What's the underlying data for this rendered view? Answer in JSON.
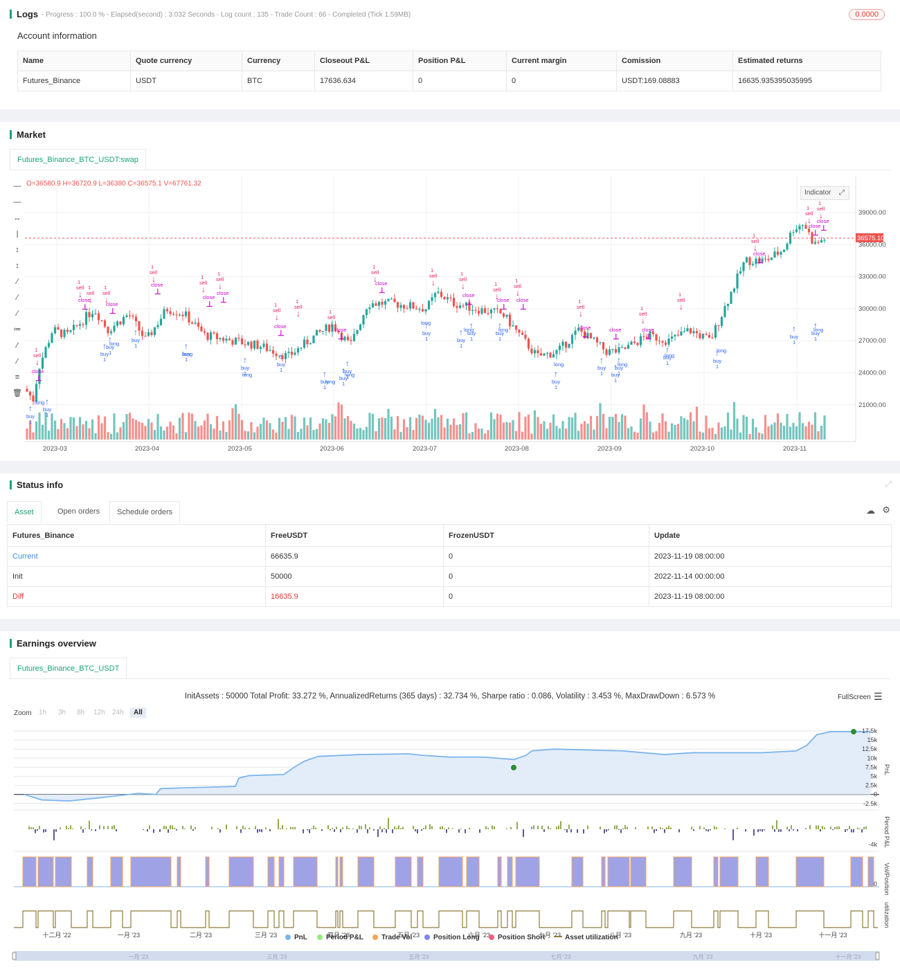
{
  "logs": {
    "title": "Logs",
    "meta": "- Progress : 100.0 % - Elapsed(second) : 3.032 Seconds - Log count : 135 - Trade Count : 66 - Completed (Tick 1.59MB)",
    "badge": "0.0000",
    "account_title": "Account information",
    "headers": [
      "Name",
      "Quote currency",
      "Currency",
      "Closeout P&L",
      "Position P&L",
      "Current margin",
      "Comission",
      "Estimated returns"
    ],
    "row": [
      "Futures_Binance",
      "USDT",
      "BTC",
      "17636.634",
      "0",
      "0",
      "USDT:169.08883",
      "16635.935395035995"
    ]
  },
  "market": {
    "title": "Market",
    "tab": "Futures_Binance_BTC_USDT:swap",
    "ohlc": "O=36580.9 H=36720.9 L=36380 C=36575.1 V=67761.32",
    "indicator_btn": "Indicator",
    "last_price": "36575.10",
    "y_ticks": [
      "39000.00",
      "36000.00",
      "33000.00",
      "30000.00",
      "27000.00",
      "24000.00",
      "21000.00"
    ],
    "x_ticks": [
      "2023-03",
      "2023-04",
      "2023-05",
      "2023-06",
      "2023-07",
      "2023-08",
      "2023-09",
      "2023-10",
      "2023-11"
    ],
    "colors": {
      "up": "#26a69a",
      "down": "#ef5350",
      "buy": "#2962ff",
      "sell": "#e91e63",
      "close": "#cc00cc"
    },
    "signal_labels": {
      "buy": "buy",
      "long": "long",
      "sell": "sell",
      "close": "close",
      "qty": "1"
    }
  },
  "status": {
    "title": "Status info",
    "tabs": [
      "Asset",
      "Open orders",
      "Schedule orders"
    ],
    "headers": [
      "Futures_Binance",
      "FreeUSDT",
      "FrozenUSDT",
      "Update"
    ],
    "rows": [
      [
        "Current",
        "66635.9",
        "0",
        "2023-11-19 08:00:00"
      ],
      [
        "Init",
        "50000",
        "0",
        "2022-11-14 00:00:00"
      ],
      [
        "Diff",
        "16635.9",
        "0",
        "2023-11-19 08:00:00"
      ]
    ]
  },
  "earnings": {
    "title": "Earnings overview",
    "tab": "Futures_Binance_BTC_USDT",
    "summary": "InitAssets : 50000 Total Profit: 33.272 %, AnnualizedReturns (365 days) : 32.734 %, Sharpe ratio : 0.086, Volatility : 3.453 %, MaxDrawDown : 6.573 %",
    "fullscreen": "FullScreen",
    "zoom_label": "Zoom",
    "zoom_buttons": [
      "1h",
      "3h",
      "8h",
      "12h",
      "24h",
      "All"
    ],
    "pnl_ticks": [
      "17.5k",
      "15k",
      "12.5k",
      "10k",
      "7.5k",
      "5k",
      "2.5k",
      "0",
      "-2.5k"
    ],
    "period_ticks": [
      "-4k"
    ],
    "vol_ticks": [
      "0"
    ],
    "axis_titles": [
      "PnL",
      "Period P&L",
      "Vol/Position",
      "utilization"
    ],
    "x_ticks": [
      "十二月 '22",
      "一月 '23",
      "二月 '23",
      "三月 '23",
      "四月 '23",
      "五月 '23",
      "六月 '23",
      "七月 '23",
      "八月 '23",
      "九月 '23",
      "十月 '23",
      "十一月 '23"
    ],
    "navigator_ticks": [
      "一月 '23",
      "三月 '23",
      "五月 '23",
      "七月 '23",
      "九月 '23",
      "十一月 '23"
    ],
    "legend": [
      {
        "label": "PnL",
        "color": "#7cb5ec"
      },
      {
        "label": "Period P&L",
        "color": "#90ed7d"
      },
      {
        "label": "Trade Vol",
        "color": "#f7a35c"
      },
      {
        "label": "Position Long",
        "color": "#8085e9"
      },
      {
        "label": "Position Short",
        "color": "#f15c80"
      },
      {
        "label": "Asset utilization",
        "color": "#8d7b3a"
      }
    ]
  }
}
